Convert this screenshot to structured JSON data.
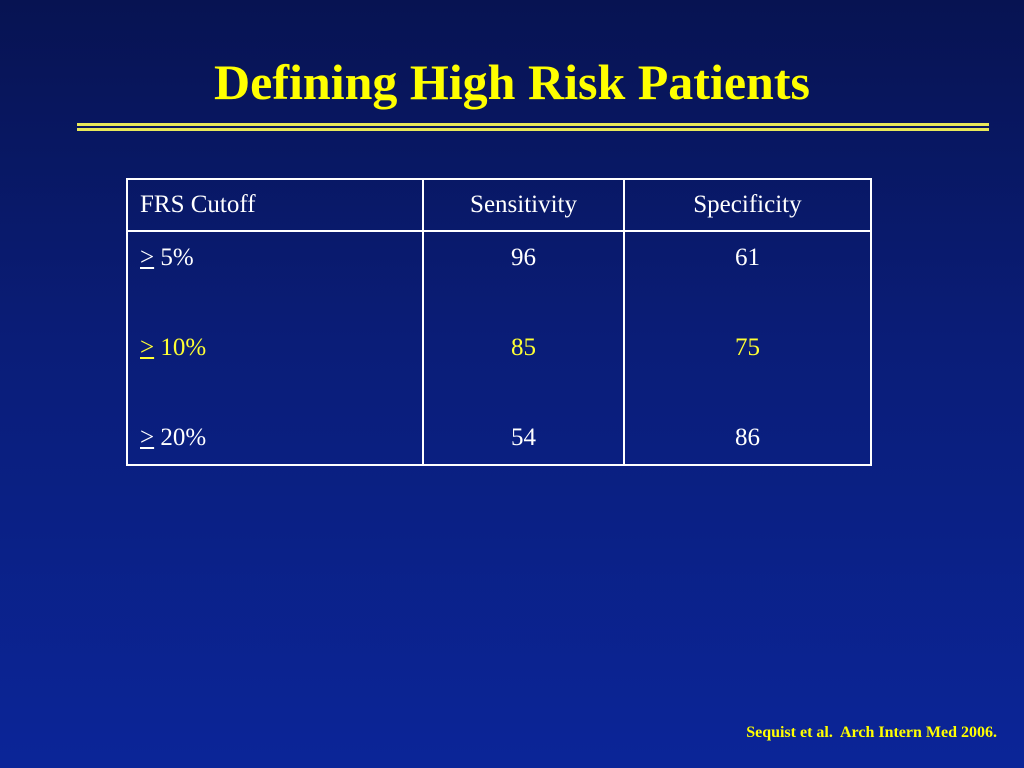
{
  "title": "Defining High Risk Patients",
  "table": {
    "headers": [
      "FRS Cutoff",
      "Sensitivity",
      "Specificity"
    ],
    "rows": [
      {
        "symbol": ">",
        "cutoff": " 5%",
        "sensitivity": "96",
        "specificity": "61"
      },
      {
        "symbol": ">",
        "cutoff": "10%",
        "sensitivity": "85",
        "specificity": "75"
      },
      {
        "symbol": ">",
        "cutoff": "20%",
        "sensitivity": "54",
        "specificity": "86"
      }
    ]
  },
  "citation": "Sequist et al.  Arch Intern Med 2006.",
  "colors": {
    "title": "#ffff00",
    "highlight_row": "#ffff33",
    "background": "#0a1d78",
    "table_text": "#ffffff"
  }
}
